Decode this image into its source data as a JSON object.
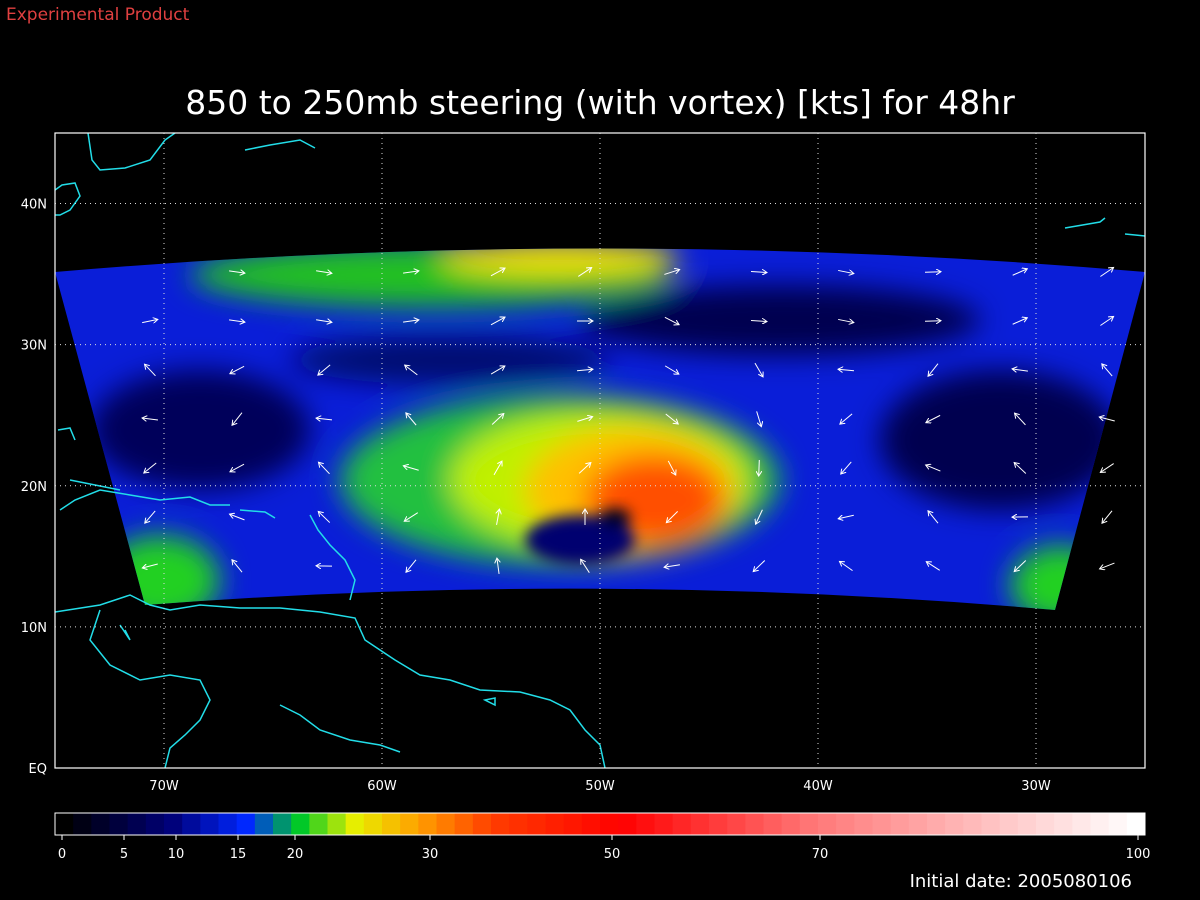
{
  "header": {
    "note": "Experimental Product",
    "title": "850 to 250mb steering (with vortex) [kts] for 48hr"
  },
  "map": {
    "lonlim": [
      -75,
      -25
    ],
    "latlim": [
      0,
      45
    ],
    "lat_ticks": [
      {
        "value": 40,
        "label": "40N"
      },
      {
        "value": 30,
        "label": "30N"
      },
      {
        "value": 20,
        "label": "20N"
      },
      {
        "value": 10,
        "label": "10N"
      },
      {
        "value": 0,
        "label": "EQ"
      }
    ],
    "lon_ticks": [
      {
        "value": -70,
        "label": "70W"
      },
      {
        "value": -60,
        "label": "60W"
      },
      {
        "value": -50,
        "label": "50W"
      },
      {
        "value": -40,
        "label": "40W"
      },
      {
        "value": -30,
        "label": "30W"
      }
    ]
  },
  "colorbar": {
    "ticks": [
      0,
      5,
      10,
      15,
      20,
      30,
      50,
      70,
      100
    ]
  },
  "footer": {
    "initial_date": "Initial date: 2005080106"
  }
}
